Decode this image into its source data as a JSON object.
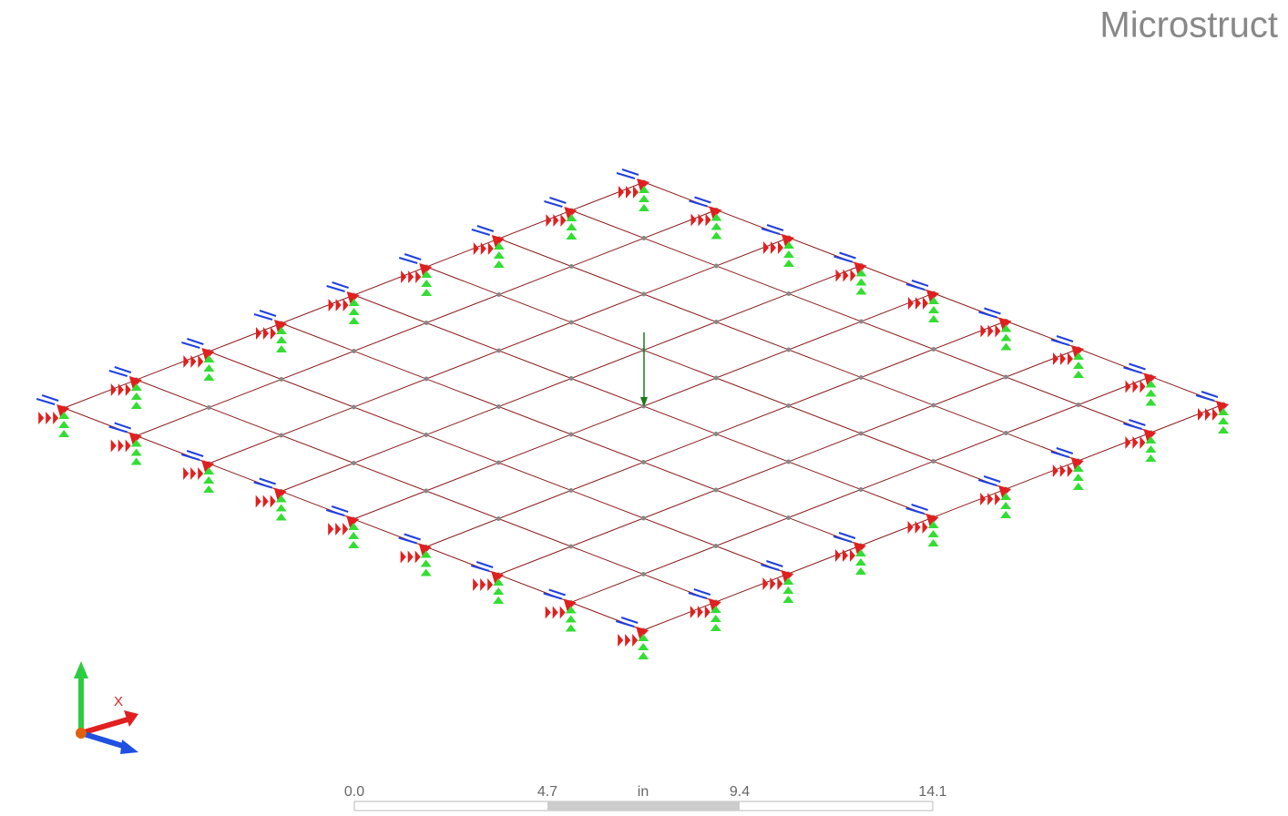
{
  "header": {
    "title": "Microstruct"
  },
  "triad": {
    "x_label": "X"
  },
  "scale_bar": {
    "labels": [
      "0.0",
      "4.7",
      "in",
      "9.4",
      "14.1"
    ]
  }
}
